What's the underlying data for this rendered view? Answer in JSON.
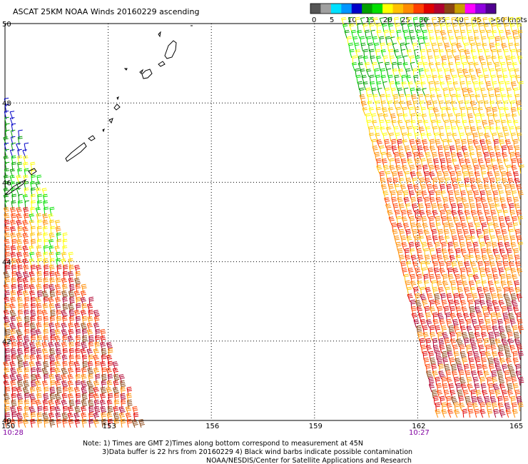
{
  "title": "ASCAT 25KM NOAA Winds 20160229 ascending",
  "colorbar": {
    "colors": [
      "#555555",
      "#a0a0a0",
      "#00e0ff",
      "#0096ff",
      "#0000c8",
      "#00a000",
      "#00e000",
      "#ffff00",
      "#ffc000",
      "#ff8c00",
      "#ff4000",
      "#e00000",
      "#b00030",
      "#8b4513",
      "#c8a000",
      "#ff00ff",
      "#9000e0",
      "#500090"
    ],
    "labels": [
      "0",
      "5",
      "10",
      "15",
      "20",
      "25",
      "30",
      "35",
      "40",
      "45",
      ">50 knots"
    ]
  },
  "lat_labels": [
    "50",
    "48",
    "46",
    "44",
    "42",
    "40"
  ],
  "lon_labels": [
    "150",
    "153",
    "156",
    "159",
    "162",
    "165"
  ],
  "time_left": "10:28",
  "time_right": "10:27",
  "notes": {
    "line1": "Note: 1) Times are GMT 2)Times along bottom correspond to measurement at 45N",
    "line2": "3)Data buffer is 22 hrs from 20160229 4) Black wind barbs indicate possible contamination",
    "line3": "NOAA/NESDIS/Center for Satellite Applications and Research"
  },
  "map_data": {
    "lat_range": [
      40,
      50
    ],
    "lon_range": [
      150,
      165
    ],
    "swaths": [
      {
        "name": "west",
        "region": "150E-154E, 40N-48.5N",
        "dominant_speed_knots": "15-40"
      },
      {
        "name": "east",
        "region": "159.5E-165E, 40N-50N",
        "dominant_speed_knots": "20-40"
      }
    ]
  }
}
